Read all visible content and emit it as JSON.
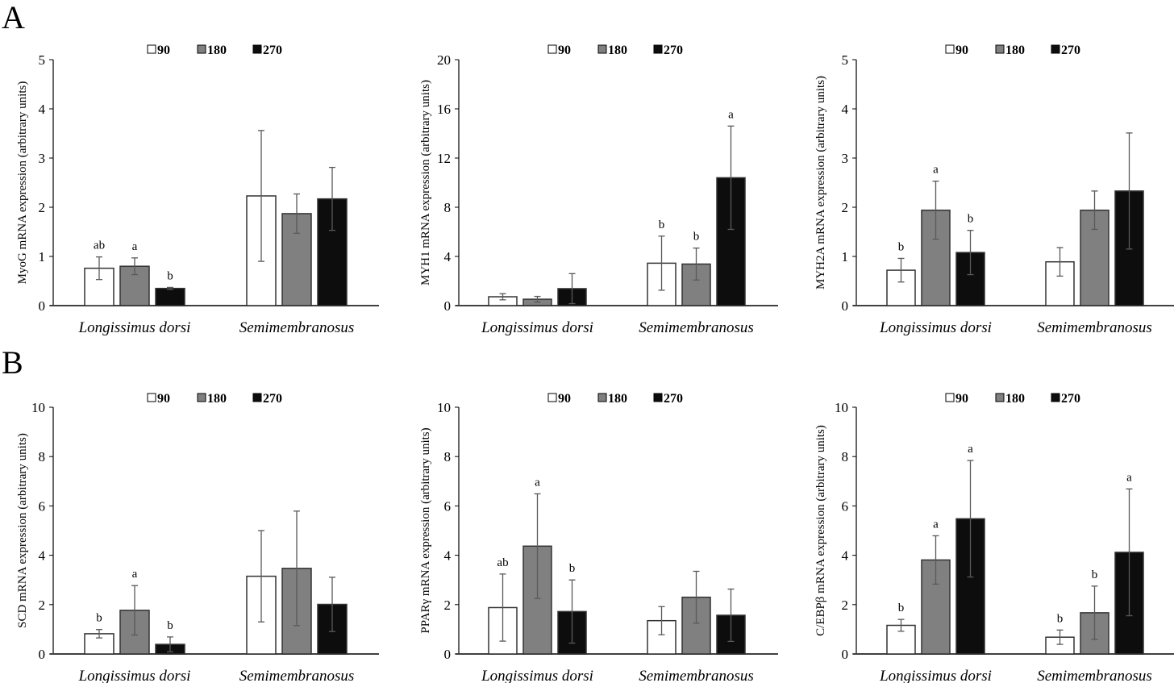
{
  "figure": {
    "panel_letters": [
      "A",
      "B"
    ]
  },
  "legend": {
    "items": [
      {
        "label": "90",
        "color": "#ffffff"
      },
      {
        "label": "180",
        "color": "#808080"
      },
      {
        "label": "270",
        "color": "#0d0d0d"
      }
    ]
  },
  "colors": {
    "bar_outline": "#333333",
    "error_bar": "#595959",
    "axis": "#404040"
  },
  "chart_data": [
    {
      "type": "bar",
      "row": "A",
      "title": "",
      "ylabel": "MyoG mRNA expression (arbitrary units)",
      "xlabel": "",
      "categories": [
        "Longissimus dorsi",
        "Semimembranosus"
      ],
      "ylim": [
        0,
        5
      ],
      "yticks": [
        0,
        1,
        2,
        3,
        4,
        5
      ],
      "series": [
        {
          "name": "90",
          "values": [
            0.76,
            2.23
          ],
          "errors": [
            0.23,
            1.33
          ],
          "letters": [
            "ab",
            ""
          ]
        },
        {
          "name": "180",
          "values": [
            0.8,
            1.87
          ],
          "errors": [
            0.17,
            0.4
          ],
          "letters": [
            "a",
            ""
          ]
        },
        {
          "name": "270",
          "values": [
            0.35,
            2.17
          ],
          "errors": [
            0.02,
            0.64
          ],
          "letters": [
            "b",
            ""
          ]
        }
      ],
      "legend": "top-center",
      "grid": false
    },
    {
      "type": "bar",
      "row": "A",
      "title": "",
      "ylabel": "MYH1 mRNA expression (arbitrary units)",
      "xlabel": "",
      "categories": [
        "Longissimus dorsi",
        "Semimembranosus"
      ],
      "ylim": [
        0,
        20
      ],
      "yticks": [
        0,
        4,
        8,
        12,
        16,
        20
      ],
      "series": [
        {
          "name": "90",
          "values": [
            0.72,
            3.45
          ],
          "errors": [
            0.25,
            2.2
          ],
          "letters": [
            "",
            "b"
          ]
        },
        {
          "name": "180",
          "values": [
            0.52,
            3.38
          ],
          "errors": [
            0.23,
            1.3
          ],
          "letters": [
            "",
            "b"
          ]
        },
        {
          "name": "270",
          "values": [
            1.38,
            10.4
          ],
          "errors": [
            1.22,
            4.2
          ],
          "letters": [
            "",
            "a"
          ]
        }
      ],
      "legend": "top-center",
      "grid": false
    },
    {
      "type": "bar",
      "row": "A",
      "title": "",
      "ylabel": "MYH2A mRNA expression (arbitrary units)",
      "xlabel": "",
      "categories": [
        "Longissimus dorsi",
        "Semimembranosus"
      ],
      "ylim": [
        0,
        5
      ],
      "yticks": [
        0,
        1,
        2,
        3,
        4,
        5
      ],
      "series": [
        {
          "name": "90",
          "values": [
            0.72,
            0.89
          ],
          "errors": [
            0.24,
            0.29
          ],
          "letters": [
            "b",
            ""
          ]
        },
        {
          "name": "180",
          "values": [
            1.94,
            1.94
          ],
          "errors": [
            0.59,
            0.39
          ],
          "letters": [
            "a",
            ""
          ]
        },
        {
          "name": "270",
          "values": [
            1.08,
            2.33
          ],
          "errors": [
            0.45,
            1.18
          ],
          "letters": [
            "b",
            ""
          ]
        }
      ],
      "legend": "top-center",
      "grid": false
    },
    {
      "type": "bar",
      "row": "B",
      "title": "",
      "ylabel": "SCD mRNA expression (arbitrary units)",
      "xlabel": "",
      "categories": [
        "Longissimus dorsi",
        "Semimembranosus"
      ],
      "ylim": [
        0,
        10
      ],
      "yticks": [
        0,
        2,
        4,
        6,
        8,
        10
      ],
      "series": [
        {
          "name": "90",
          "values": [
            0.82,
            3.15
          ],
          "errors": [
            0.17,
            1.85
          ],
          "letters": [
            "b",
            ""
          ]
        },
        {
          "name": "180",
          "values": [
            1.77,
            3.47
          ],
          "errors": [
            1.0,
            2.32
          ],
          "letters": [
            "a",
            ""
          ]
        },
        {
          "name": "270",
          "values": [
            0.39,
            2.01
          ],
          "errors": [
            0.3,
            1.1
          ],
          "letters": [
            "b",
            ""
          ]
        }
      ],
      "legend": "top-center",
      "grid": false
    },
    {
      "type": "bar",
      "row": "B",
      "title": "",
      "ylabel": "PPARγ mRNA expression (arbitrary units)",
      "xlabel": "",
      "categories": [
        "Longissimus dorsi",
        "Semimembranosus"
      ],
      "ylim": [
        0,
        10
      ],
      "yticks": [
        0,
        2,
        4,
        6,
        8,
        10
      ],
      "series": [
        {
          "name": "90",
          "values": [
            1.88,
            1.35
          ],
          "errors": [
            1.36,
            0.57
          ],
          "letters": [
            "ab",
            ""
          ]
        },
        {
          "name": "180",
          "values": [
            4.37,
            2.3
          ],
          "errors": [
            2.12,
            1.05
          ],
          "letters": [
            "a",
            ""
          ]
        },
        {
          "name": "270",
          "values": [
            1.72,
            1.57
          ],
          "errors": [
            1.28,
            1.06
          ],
          "letters": [
            "b",
            ""
          ]
        }
      ],
      "legend": "top-center",
      "grid": false
    },
    {
      "type": "bar",
      "row": "B",
      "title": "",
      "ylabel": "C/EBPβ mRNA expression (arbitrary units)",
      "xlabel": "",
      "categories": [
        "Longissimus dorsi",
        "Semimembranosus"
      ],
      "ylim": [
        0,
        10
      ],
      "yticks": [
        0,
        2,
        4,
        6,
        8,
        10
      ],
      "series": [
        {
          "name": "90",
          "values": [
            1.16,
            0.68
          ],
          "errors": [
            0.24,
            0.29
          ],
          "letters": [
            "b",
            "b"
          ]
        },
        {
          "name": "180",
          "values": [
            3.81,
            1.67
          ],
          "errors": [
            0.98,
            1.08
          ],
          "letters": [
            "a",
            "b"
          ]
        },
        {
          "name": "270",
          "values": [
            5.48,
            4.12
          ],
          "errors": [
            2.36,
            2.57
          ],
          "letters": [
            "a",
            "a"
          ]
        }
      ],
      "legend": "top-center",
      "grid": false
    }
  ]
}
